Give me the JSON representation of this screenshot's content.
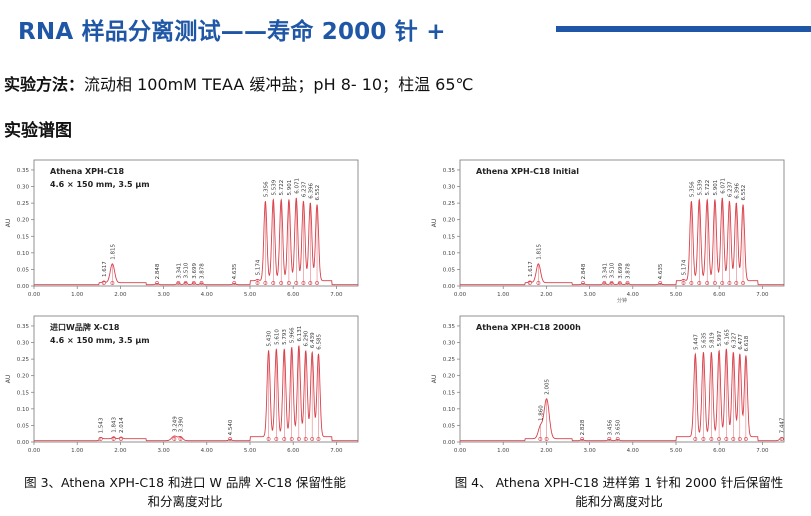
{
  "title": "RNA 样品分离测试——寿命 2000 针 +",
  "method": {
    "label": "实验方法：",
    "text": "流动相 100mM TEAA 缓冲盐；pH 8- 10；柱温 65℃"
  },
  "spectra_heading": "实验谱图",
  "colors": {
    "accent": "#1f57a6",
    "trace": "#d9404a",
    "axis": "#777777"
  },
  "captions": {
    "left": [
      "图 3、Athena XPH-C18 和进口 W 品牌 X-C18 保留性能",
      "和分离度对比"
    ],
    "right": [
      "图 4、 Athena XPH-C18 进样第 1 针和 2000 针后保留性",
      "能和分离度对比"
    ]
  },
  "chart_data": [
    {
      "type": "line",
      "title": "Athena  XPH-C18",
      "subtitle": "4.6 × 150 mm, 3.5 μm",
      "ylabel": "AU",
      "xlim": [
        0,
        7.5
      ],
      "ylim": [
        0,
        0.38
      ],
      "xticks": [
        "0.00",
        "1.00",
        "2.00",
        "3.00",
        "4.00",
        "5.00",
        "6.00",
        "7.00"
      ],
      "yticks": [
        "0.00",
        "0.05",
        "0.10",
        "0.15",
        "0.20",
        "0.25",
        "0.30",
        "0.35"
      ],
      "peaks": [
        {
          "rt": 1.617,
          "h": 0.005,
          "w": 0.03,
          "label": "1.617"
        },
        {
          "rt": 1.815,
          "h": 0.057,
          "w": 0.05,
          "label": "1.815"
        },
        {
          "rt": 2.848,
          "h": 0.004,
          "w": 0.03,
          "label": "2.848"
        },
        {
          "rt": 3.341,
          "h": 0.006,
          "w": 0.03,
          "label": "3.341"
        },
        {
          "rt": 3.51,
          "h": 0.007,
          "w": 0.03,
          "label": "3.510"
        },
        {
          "rt": 3.699,
          "h": 0.006,
          "w": 0.03,
          "label": "3.699"
        },
        {
          "rt": 3.878,
          "h": 0.005,
          "w": 0.03,
          "label": "3.878"
        },
        {
          "rt": 4.635,
          "h": 0.004,
          "w": 0.03,
          "label": "4.635"
        },
        {
          "rt": 5.174,
          "h": 0.004,
          "w": 0.03,
          "label": "5.174"
        },
        {
          "rt": 5.356,
          "h": 0.24,
          "w": 0.035,
          "label": "5.356"
        },
        {
          "rt": 5.539,
          "h": 0.245,
          "w": 0.035,
          "label": "5.539"
        },
        {
          "rt": 5.722,
          "h": 0.245,
          "w": 0.035,
          "label": "5.722"
        },
        {
          "rt": 5.901,
          "h": 0.245,
          "w": 0.035,
          "label": "5.901"
        },
        {
          "rt": 6.071,
          "h": 0.25,
          "w": 0.035,
          "label": "6.071"
        },
        {
          "rt": 6.237,
          "h": 0.24,
          "w": 0.035,
          "label": "6.237"
        },
        {
          "rt": 6.396,
          "h": 0.235,
          "w": 0.035,
          "label": "6.396"
        },
        {
          "rt": 6.552,
          "h": 0.23,
          "w": 0.035,
          "label": "6.552"
        }
      ]
    },
    {
      "type": "line",
      "title": "进口W品牌 X-C18",
      "subtitle": "4.6 × 150 mm, 3.5 μm",
      "ylabel": "AU",
      "xlim": [
        0,
        7.5
      ],
      "ylim": [
        0,
        0.38
      ],
      "xticks": [
        "0.00",
        "1.00",
        "2.00",
        "3.00",
        "4.00",
        "5.00",
        "6.00",
        "7.00"
      ],
      "yticks": [
        "0.00",
        "0.05",
        "0.10",
        "0.15",
        "0.20",
        "0.25",
        "0.30",
        "0.35"
      ],
      "peaks": [
        {
          "rt": 1.543,
          "h": 0.004,
          "w": 0.03,
          "label": "1.543"
        },
        {
          "rt": 1.843,
          "h": 0.006,
          "w": 0.03,
          "label": "1.843"
        },
        {
          "rt": 2.014,
          "h": 0.005,
          "w": 0.03,
          "label": "2.014"
        },
        {
          "rt": 3.249,
          "h": 0.014,
          "w": 0.06,
          "label": "3.249"
        },
        {
          "rt": 3.39,
          "h": 0.012,
          "w": 0.05,
          "label": "3.390"
        },
        {
          "rt": 4.54,
          "h": 0.004,
          "w": 0.03,
          "label": "4.540"
        },
        {
          "rt": 5.43,
          "h": 0.26,
          "w": 0.035,
          "label": "5.430"
        },
        {
          "rt": 5.61,
          "h": 0.265,
          "w": 0.035,
          "label": "5.610"
        },
        {
          "rt": 5.793,
          "h": 0.265,
          "w": 0.035,
          "label": "5.793"
        },
        {
          "rt": 5.966,
          "h": 0.27,
          "w": 0.035,
          "label": "5.966"
        },
        {
          "rt": 6.131,
          "h": 0.275,
          "w": 0.035,
          "label": "6.131"
        },
        {
          "rt": 6.29,
          "h": 0.26,
          "w": 0.035,
          "label": "6.290"
        },
        {
          "rt": 6.439,
          "h": 0.255,
          "w": 0.035,
          "label": "6.439"
        },
        {
          "rt": 6.585,
          "h": 0.25,
          "w": 0.035,
          "label": "6.585"
        }
      ]
    },
    {
      "type": "line",
      "title": "Athena   XPH-C18   Initial",
      "subtitle": "",
      "ylabel": "AU",
      "xlabel": "分钟",
      "xlim": [
        0,
        7.5
      ],
      "ylim": [
        0,
        0.38
      ],
      "xticks": [
        "0.00",
        "1.00",
        "2.00",
        "3.00",
        "4.00",
        "5.00",
        "6.00",
        "7.00"
      ],
      "yticks": [
        "0.00",
        "0.05",
        "0.10",
        "0.15",
        "0.20",
        "0.25",
        "0.30",
        "0.35"
      ],
      "peaks": [
        {
          "rt": 1.617,
          "h": 0.005,
          "w": 0.03,
          "label": "1.617"
        },
        {
          "rt": 1.815,
          "h": 0.057,
          "w": 0.05,
          "label": "1.815"
        },
        {
          "rt": 2.848,
          "h": 0.004,
          "w": 0.03,
          "label": "2.848"
        },
        {
          "rt": 3.341,
          "h": 0.006,
          "w": 0.03,
          "label": "3.341"
        },
        {
          "rt": 3.51,
          "h": 0.007,
          "w": 0.03,
          "label": "3.510"
        },
        {
          "rt": 3.699,
          "h": 0.006,
          "w": 0.03,
          "label": "3.699"
        },
        {
          "rt": 3.878,
          "h": 0.005,
          "w": 0.03,
          "label": "3.878"
        },
        {
          "rt": 4.635,
          "h": 0.004,
          "w": 0.03,
          "label": "4.635"
        },
        {
          "rt": 5.174,
          "h": 0.004,
          "w": 0.03,
          "label": "5.174"
        },
        {
          "rt": 5.356,
          "h": 0.24,
          "w": 0.035,
          "label": "5.356"
        },
        {
          "rt": 5.539,
          "h": 0.245,
          "w": 0.035,
          "label": "5.539"
        },
        {
          "rt": 5.722,
          "h": 0.245,
          "w": 0.035,
          "label": "5.722"
        },
        {
          "rt": 5.901,
          "h": 0.245,
          "w": 0.035,
          "label": "5.901"
        },
        {
          "rt": 6.071,
          "h": 0.25,
          "w": 0.035,
          "label": "6.071"
        },
        {
          "rt": 6.237,
          "h": 0.24,
          "w": 0.035,
          "label": "6.237"
        },
        {
          "rt": 6.396,
          "h": 0.235,
          "w": 0.035,
          "label": "6.396"
        },
        {
          "rt": 6.552,
          "h": 0.23,
          "w": 0.035,
          "label": "6.552"
        }
      ]
    },
    {
      "type": "line",
      "title": "Athena   XPH-C18      2000h",
      "subtitle": "",
      "ylabel": "AU",
      "xlim": [
        0,
        7.5
      ],
      "ylim": [
        0,
        0.38
      ],
      "xticks": [
        "0.00",
        "1.00",
        "2.00",
        "3.00",
        "4.00",
        "5.00",
        "6.00",
        "7.00"
      ],
      "yticks": [
        "0.00",
        "0.05",
        "0.10",
        "0.15",
        "0.20",
        "0.25",
        "0.30",
        "0.35"
      ],
      "peaks": [
        {
          "rt": 1.86,
          "h": 0.035,
          "w": 0.05,
          "label": "1.860"
        },
        {
          "rt": 2.005,
          "h": 0.12,
          "w": 0.06,
          "label": "2.005"
        },
        {
          "rt": 2.828,
          "h": 0.004,
          "w": 0.03,
          "label": "2.828"
        },
        {
          "rt": 3.456,
          "h": 0.004,
          "w": 0.03,
          "label": "3.456"
        },
        {
          "rt": 3.65,
          "h": 0.004,
          "w": 0.03,
          "label": "3.650"
        },
        {
          "rt": 5.447,
          "h": 0.25,
          "w": 0.035,
          "label": "5.447"
        },
        {
          "rt": 5.635,
          "h": 0.255,
          "w": 0.035,
          "label": "5.635"
        },
        {
          "rt": 5.819,
          "h": 0.255,
          "w": 0.035,
          "label": "5.819"
        },
        {
          "rt": 5.997,
          "h": 0.26,
          "w": 0.035,
          "label": "5.997"
        },
        {
          "rt": 6.165,
          "h": 0.265,
          "w": 0.035,
          "label": "6.165"
        },
        {
          "rt": 6.327,
          "h": 0.255,
          "w": 0.035,
          "label": "6.327"
        },
        {
          "rt": 6.477,
          "h": 0.25,
          "w": 0.035,
          "label": "6.477"
        },
        {
          "rt": 6.618,
          "h": 0.245,
          "w": 0.035,
          "label": "6.618"
        },
        {
          "rt": 7.447,
          "h": 0.01,
          "w": 0.04,
          "label": "7.447"
        }
      ]
    }
  ]
}
